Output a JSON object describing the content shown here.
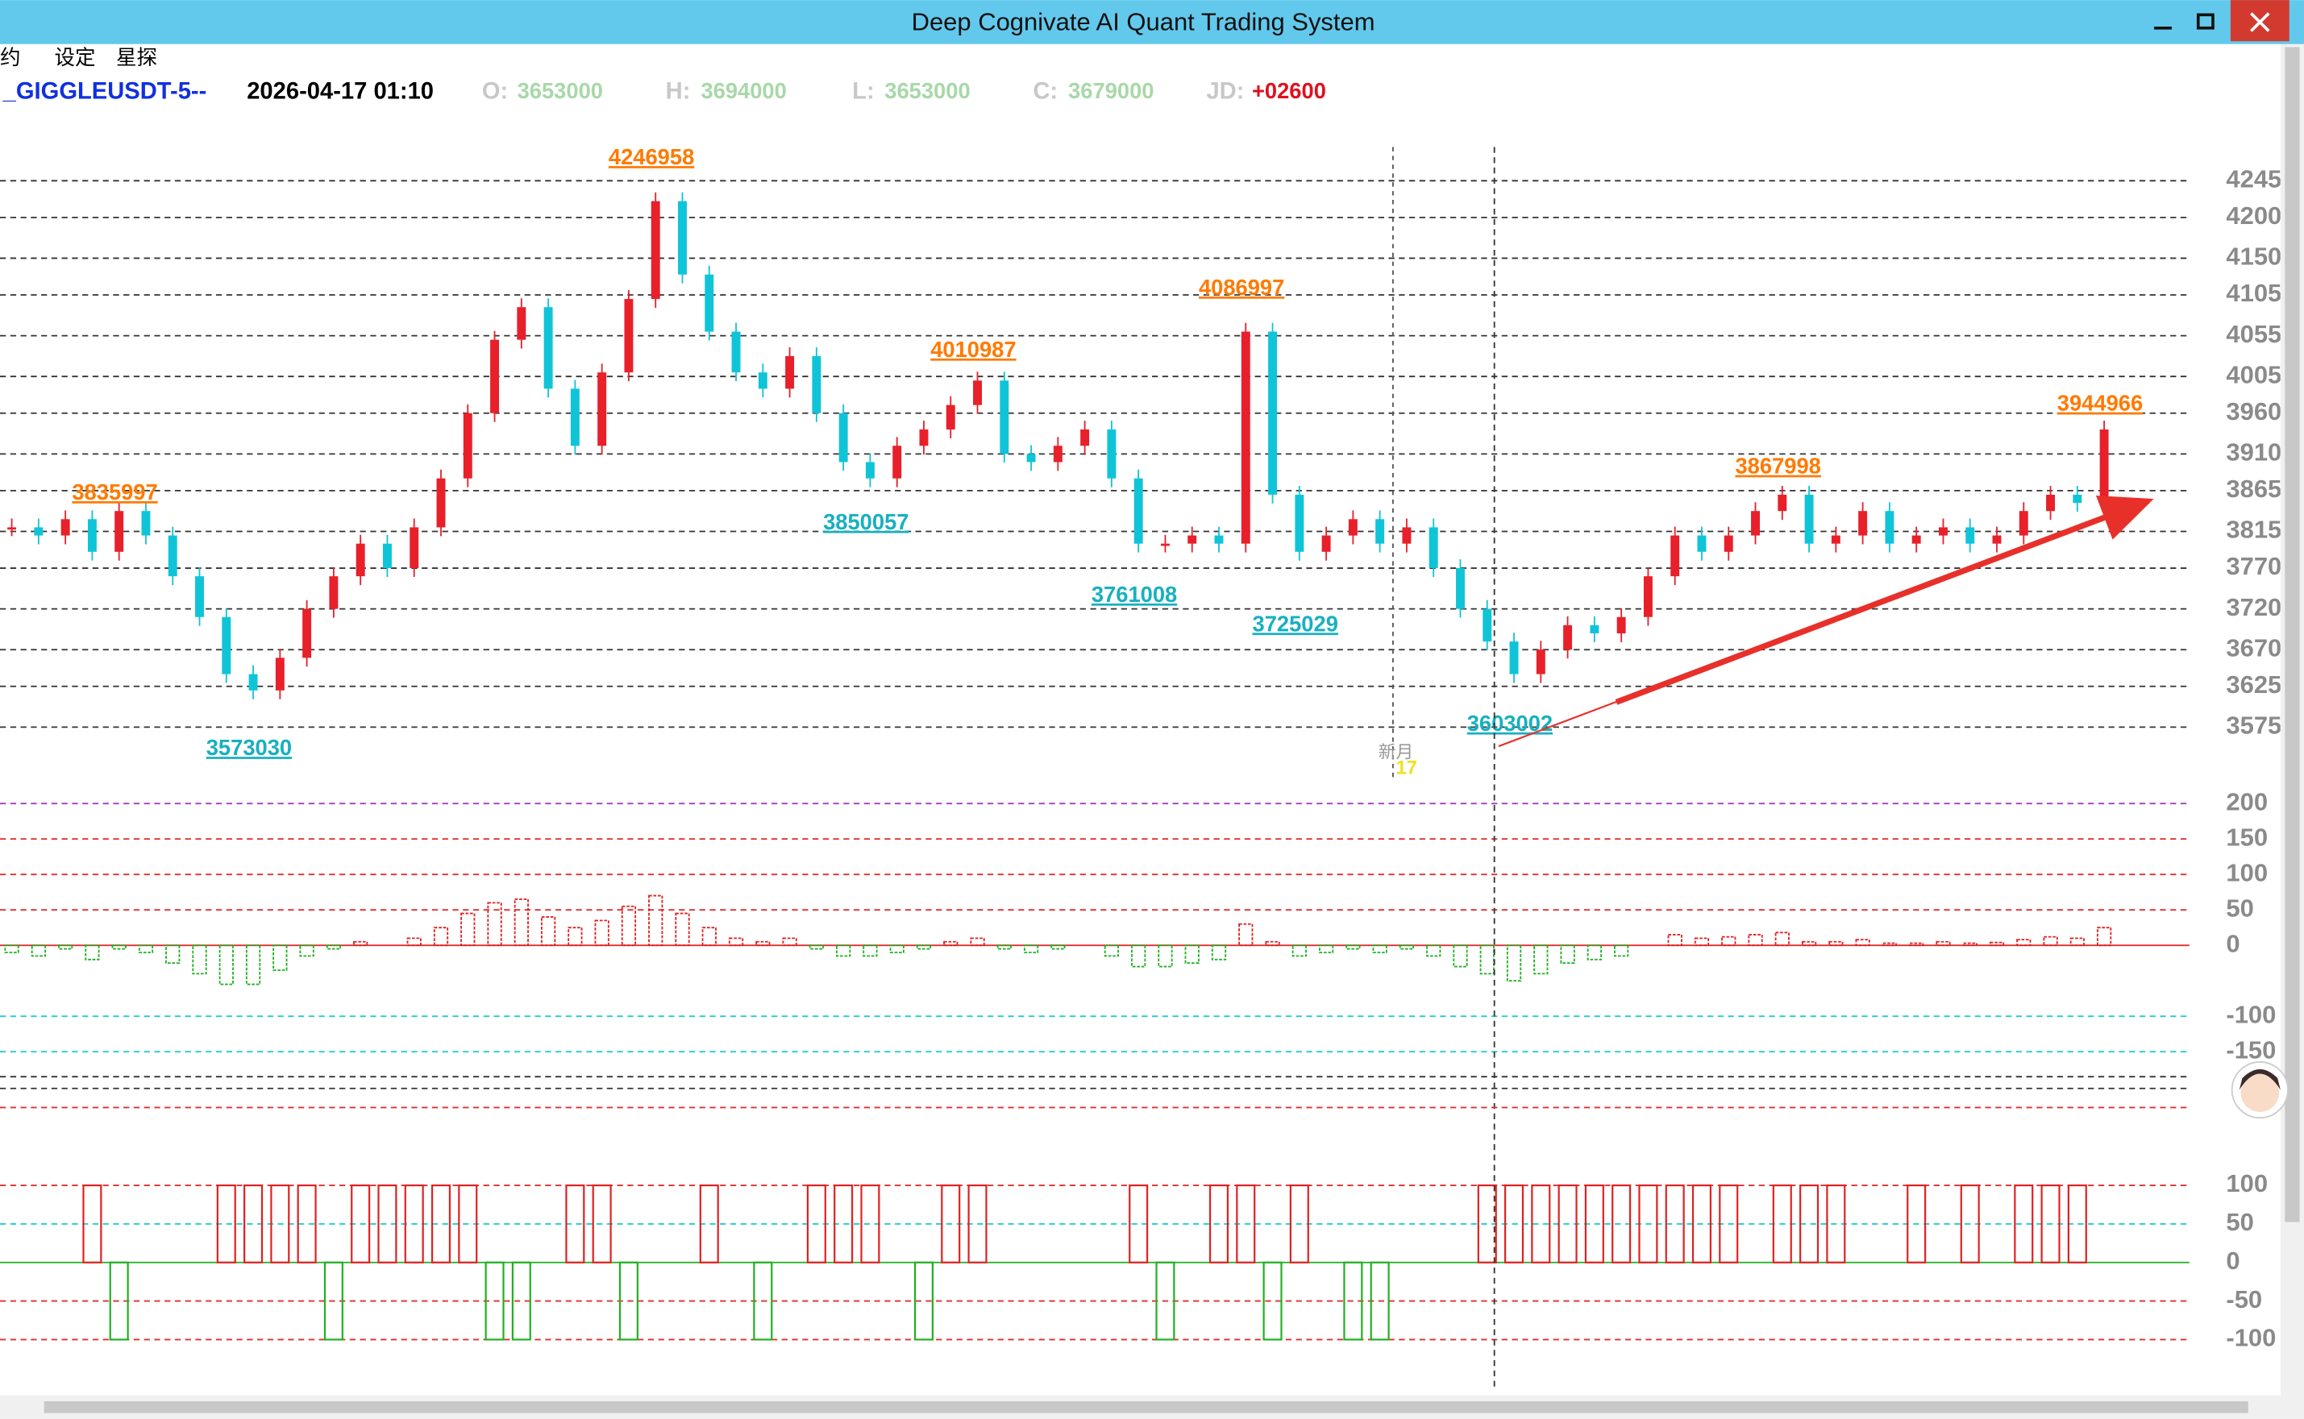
{
  "window": {
    "title": "Deep Cognivate AI Quant Trading System"
  },
  "menu": [
    "合约",
    "设定",
    "星探"
  ],
  "header": {
    "symbol": "_GIGGLEUSDT-5--",
    "datetime": "2026-04-17 01:10",
    "fields": [
      {
        "key": "O:",
        "value": "3653000"
      },
      {
        "key": "H:",
        "value": "3694000"
      },
      {
        "key": "L:",
        "value": "3653000"
      },
      {
        "key": "C:",
        "value": "3679000"
      },
      {
        "key": "JD:",
        "value": "+02600"
      }
    ]
  },
  "marker": {
    "label": "新月",
    "day": "17"
  },
  "price_chart": {
    "type": "candlestick",
    "ylim": [
      3575000,
      4245000
    ],
    "yticks": [
      4245000,
      4200000,
      4150000,
      4105000,
      4055000,
      4005000,
      3960000,
      3910000,
      3865000,
      3815000,
      3770000,
      3720000,
      3670000,
      3625000,
      3575000
    ],
    "closes": [
      3820000,
      3810000,
      3830000,
      3790000,
      3840000,
      3810000,
      3760000,
      3710000,
      3640000,
      3620000,
      3660000,
      3720000,
      3760000,
      3800000,
      3770000,
      3820000,
      3880000,
      3960000,
      4050000,
      4090000,
      3990000,
      3920000,
      4010000,
      4100000,
      4220000,
      4130000,
      4060000,
      4010000,
      3990000,
      4030000,
      3960000,
      3900000,
      3880000,
      3920000,
      3940000,
      3970000,
      4000000,
      3910000,
      3900000,
      3920000,
      3940000,
      3880000,
      3800000,
      3800000,
      3810000,
      3800000,
      4060000,
      3860000,
      3790000,
      3810000,
      3830000,
      3800000,
      3820000,
      3770000,
      3720000,
      3680000,
      3640000,
      3670000,
      3700000,
      3690000,
      3710000,
      3760000,
      3810000,
      3790000,
      3810000,
      3840000,
      3860000,
      3800000,
      3810000,
      3840000,
      3800000,
      3810000,
      3820000,
      3800000,
      3810000,
      3840000,
      3860000,
      3850000,
      3940000
    ],
    "up_color": "#e8202a",
    "down_color": "#10c4d8",
    "annotations": [
      {
        "label": "3835997",
        "value": 3835997,
        "bar": 4,
        "kind": "high"
      },
      {
        "label": "4246958",
        "value": 4246958,
        "bar": 24,
        "kind": "high"
      },
      {
        "label": "4010987",
        "value": 4010987,
        "bar": 36,
        "kind": "high"
      },
      {
        "label": "4086997",
        "value": 4086997,
        "bar": 46,
        "kind": "high"
      },
      {
        "label": "3867998",
        "value": 3867998,
        "bar": 66,
        "kind": "high"
      },
      {
        "label": "3944966",
        "value": 3944966,
        "bar": 78,
        "kind": "high"
      },
      {
        "label": "3573030",
        "value": 3573030,
        "bar": 9,
        "kind": "low"
      },
      {
        "label": "3850057",
        "value": 3850057,
        "bar": 32,
        "kind": "low"
      },
      {
        "label": "3761008",
        "value": 3761008,
        "bar": 42,
        "kind": "low"
      },
      {
        "label": "3725029",
        "value": 3725029,
        "bar": 48,
        "kind": "low"
      },
      {
        "label": "3603002",
        "value": 3603002,
        "bar": 56,
        "kind": "low"
      }
    ]
  },
  "macd_panel": {
    "type": "bar",
    "ylim": [
      -150,
      200
    ],
    "yticks": [
      200,
      150,
      100,
      50,
      0,
      -100,
      -150
    ],
    "values": [
      -10,
      -15,
      -5,
      -20,
      -5,
      -10,
      -25,
      -40,
      -55,
      -55,
      -35,
      -15,
      -5,
      5,
      0,
      10,
      25,
      45,
      60,
      65,
      40,
      25,
      35,
      55,
      70,
      45,
      25,
      10,
      5,
      10,
      -5,
      -15,
      -15,
      -10,
      -5,
      5,
      10,
      -5,
      -10,
      -5,
      0,
      -15,
      -30,
      -30,
      -25,
      -20,
      30,
      5,
      -15,
      -10,
      -5,
      -10,
      -5,
      -15,
      -30,
      -40,
      -50,
      -40,
      -25,
      -20,
      -15,
      0,
      15,
      10,
      12,
      15,
      18,
      5,
      5,
      8,
      3,
      3,
      5,
      3,
      4,
      8,
      12,
      10,
      25
    ]
  },
  "signal_panel": {
    "type": "bar",
    "ylim": [
      -100,
      100
    ],
    "yticks": [
      100,
      50,
      0,
      -50,
      -100
    ],
    "values": [
      0,
      0,
      0,
      100,
      -100,
      0,
      0,
      0,
      100,
      100,
      100,
      100,
      -100,
      100,
      100,
      100,
      100,
      100,
      -100,
      -100,
      0,
      100,
      100,
      -100,
      0,
      0,
      100,
      0,
      -100,
      0,
      100,
      100,
      100,
      0,
      -100,
      100,
      100,
      0,
      0,
      0,
      0,
      0,
      100,
      -100,
      0,
      100,
      100,
      -100,
      100,
      0,
      -100,
      -100,
      0,
      0,
      0,
      100,
      100,
      100,
      100,
      100,
      100,
      100,
      100,
      100,
      100,
      0,
      100,
      100,
      100,
      0,
      0,
      100,
      0,
      100,
      0,
      100,
      100,
      100,
      0
    ]
  }
}
